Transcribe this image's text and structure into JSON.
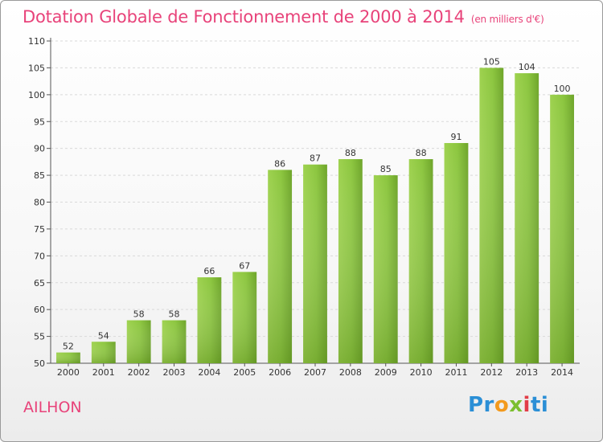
{
  "chart_data": {
    "type": "bar",
    "title": "Dotation Globale de Fonctionnement de 2000 à 2014",
    "subtitle": "(en milliers d'€)",
    "categories": [
      "2000",
      "2001",
      "2002",
      "2003",
      "2004",
      "2005",
      "2006",
      "2007",
      "2008",
      "2009",
      "2010",
      "2011",
      "2012",
      "2013",
      "2014"
    ],
    "values": [
      52,
      54,
      58,
      58,
      66,
      67,
      86,
      87,
      88,
      85,
      88,
      91,
      105,
      104,
      100
    ],
    "ylim": [
      50,
      110
    ],
    "yticks": [
      "50",
      "55",
      "60",
      "65",
      "70",
      "75",
      "80",
      "85",
      "90",
      "95",
      "100",
      "105",
      "110"
    ],
    "grid": true,
    "bar_color": "#8cc63f"
  },
  "footer": {
    "commune": "AILHON",
    "logo_parts": [
      "Pr",
      "o",
      "x",
      "i",
      "ti"
    ]
  }
}
